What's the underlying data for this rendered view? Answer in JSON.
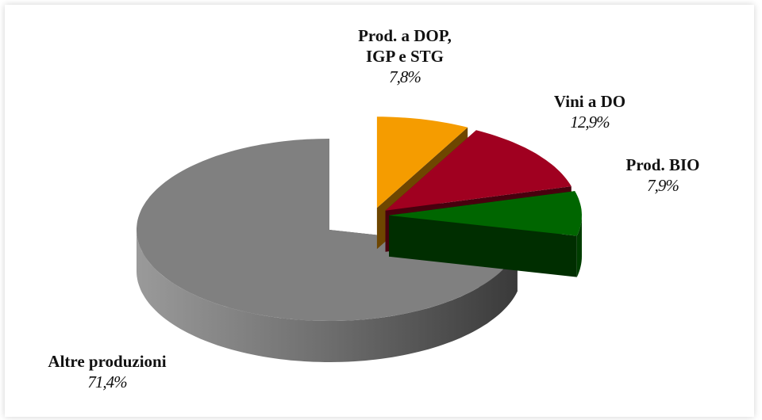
{
  "chart_data": {
    "type": "pie3d",
    "categories": [
      "Prod. a DOP, IGP e STG",
      "Vini a DO",
      "Prod. BIO",
      "Altre produzioni"
    ],
    "values": [
      7.8,
      12.9,
      7.9,
      71.4
    ],
    "value_labels": [
      "7,8%",
      "12,9%",
      "7,9%",
      "71,4%"
    ],
    "colors": [
      "#f59c00",
      "#a00020",
      "#006600",
      "#808080"
    ]
  }
}
